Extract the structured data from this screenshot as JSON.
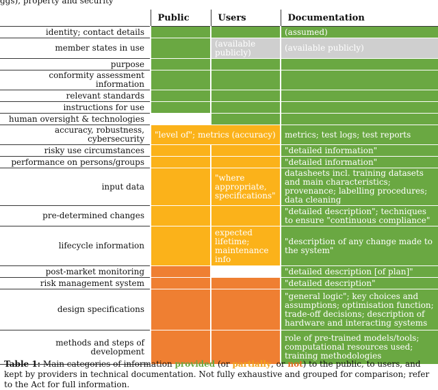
{
  "top_fragment": "                  ggs),                                           property and security",
  "table": {
    "headers": [
      "",
      "Public",
      "Users",
      "Documentation"
    ],
    "rows": [
      {
        "label": "identity; contact details",
        "public": {
          "c": "g",
          "t": ""
        },
        "users": {
          "c": "g",
          "t": ""
        },
        "doc": {
          "c": "g",
          "t": "(assumed)"
        }
      },
      {
        "label": "member states in use",
        "public": {
          "c": "g",
          "t": ""
        },
        "users": {
          "c": "gr",
          "t": "(available publicly)"
        },
        "doc": {
          "c": "gr",
          "t": "(available publicly)"
        }
      },
      {
        "label": "purpose",
        "public": {
          "c": "g",
          "t": ""
        },
        "users": {
          "c": "g",
          "t": ""
        },
        "doc": {
          "c": "g",
          "t": ""
        }
      },
      {
        "label": "conformity assessment information",
        "public": {
          "c": "g",
          "t": ""
        },
        "users": {
          "c": "g",
          "t": ""
        },
        "doc": {
          "c": "g",
          "t": ""
        }
      },
      {
        "label": "relevant standards",
        "public": {
          "c": "g",
          "t": ""
        },
        "users": {
          "c": "g",
          "t": ""
        },
        "doc": {
          "c": "g",
          "t": ""
        }
      },
      {
        "label": "instructions for use",
        "public": {
          "c": "g",
          "t": ""
        },
        "users": {
          "c": "g",
          "t": ""
        },
        "doc": {
          "c": "g",
          "t": ""
        }
      },
      {
        "label": "human oversight & technologies",
        "public": {
          "c": "w",
          "t": ""
        },
        "users": {
          "c": "g",
          "t": ""
        },
        "doc": {
          "c": "g",
          "t": ""
        }
      },
      {
        "label": "accuracy, robustness, cybersecurity",
        "span": {
          "c": "o",
          "t": "\"level of\"; metrics (accuracy)"
        },
        "doc": {
          "c": "g",
          "t": "metrics; test logs; test reports"
        }
      },
      {
        "label": "risky use circumstances",
        "public": {
          "c": "o",
          "t": ""
        },
        "users": {
          "c": "o",
          "t": ""
        },
        "doc": {
          "c": "g",
          "t": "\"detailed information\""
        }
      },
      {
        "label": "performance on persons/groups",
        "public": {
          "c": "o",
          "t": ""
        },
        "users": {
          "c": "o",
          "t": ""
        },
        "doc": {
          "c": "g",
          "t": "\"detailed information\""
        }
      },
      {
        "label": "input data",
        "public": {
          "c": "o",
          "t": ""
        },
        "users": {
          "c": "o",
          "t": "\"where appropriate, specifications\""
        },
        "doc": {
          "c": "g",
          "t": "datasheets incl. training datasets and main characteristics; provenance; labelling procedures; data cleaning"
        }
      },
      {
        "label": "pre-determined changes",
        "public": {
          "c": "o",
          "t": ""
        },
        "users": {
          "c": "o",
          "t": ""
        },
        "doc": {
          "c": "g",
          "t": "\"detailed description\"; techniques to ensure \"continuous compliance\""
        }
      },
      {
        "label": "lifecycle information",
        "public": {
          "c": "o",
          "t": ""
        },
        "users": {
          "c": "o",
          "t": "expected lifetime; maintenance info"
        },
        "doc": {
          "c": "g",
          "t": "\"description of any change made to the system\""
        }
      },
      {
        "label": "post-market monitoring",
        "public": {
          "c": "r",
          "t": ""
        },
        "users": {
          "c": "w",
          "t": ""
        },
        "doc": {
          "c": "g",
          "t": "\"detailed description [of plan]\""
        }
      },
      {
        "label": "risk management system",
        "public": {
          "c": "r",
          "t": ""
        },
        "users": {
          "c": "r",
          "t": ""
        },
        "doc": {
          "c": "g",
          "t": "\"detailed description\""
        }
      },
      {
        "label": "design specifications",
        "public": {
          "c": "r",
          "t": ""
        },
        "users": {
          "c": "r",
          "t": ""
        },
        "doc": {
          "c": "g",
          "t": "\"general logic\"; key choices and assumptions; optimisation function; trade-off decisions; description of hardware and interacting systems"
        }
      },
      {
        "label": "methods and steps of development",
        "public": {
          "c": "r",
          "t": ""
        },
        "users": {
          "c": "r",
          "t": ""
        },
        "doc": {
          "c": "g",
          "t": "role of pre-trained models/tools; computational resources used; training methodologies"
        }
      }
    ],
    "row_heights": [
      17,
      30,
      17,
      17,
      17,
      17,
      17,
      17,
      17,
      17,
      48,
      30,
      58,
      17,
      17,
      60,
      50
    ]
  },
  "caption": {
    "label": "Table 1:",
    "p1": " Main categories of information ",
    "provided": "provided",
    "p2": " (or ",
    "partially": "partially",
    "p3": ", or ",
    "not": "not",
    "p4": ") to the public, to users, and kept by providers in technical documentation. Not fully exhaustive and grouped for comparison; refer to the Act for full information."
  },
  "colors": {
    "green": "#6aa842",
    "orange": "#fbb21a",
    "red": "#ef7f32",
    "grey": "#cfcfcf"
  }
}
